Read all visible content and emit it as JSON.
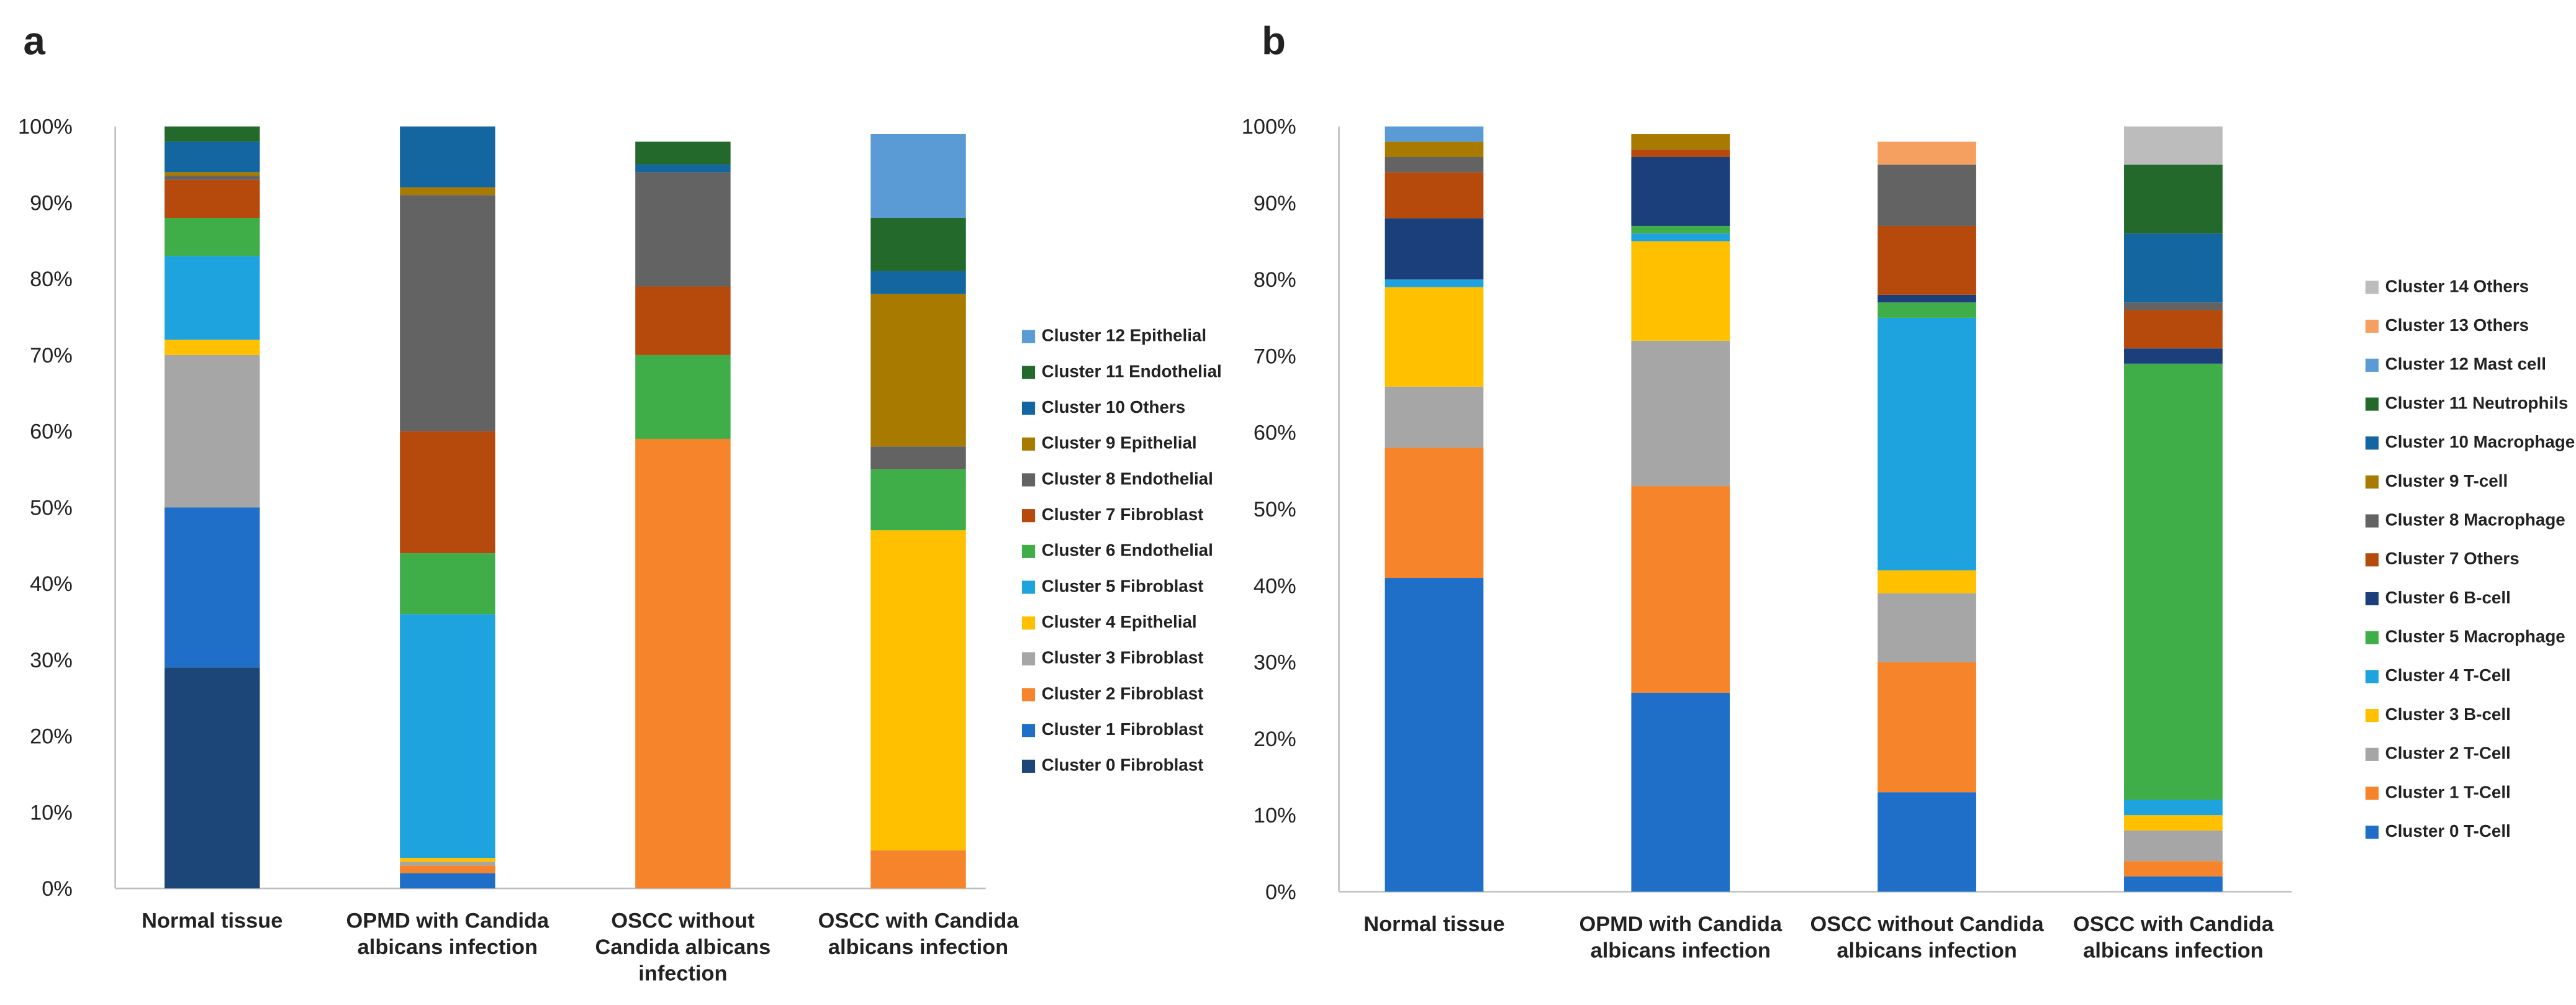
{
  "chart_data": [
    {
      "type": "stacked-bar",
      "panel": "a",
      "categories": [
        "Normal tissue",
        "OPMD with Candida albicans infection",
        "OSCC without Candida albicans infection",
        "OSCC with Candida albicans infection"
      ],
      "ylim": [
        0,
        100
      ],
      "yticks": [
        {
          "value": 0,
          "label": "0%"
        },
        {
          "value": 10,
          "label": "10%"
        },
        {
          "value": 20,
          "label": "20%"
        },
        {
          "value": 30,
          "label": "30%"
        },
        {
          "value": 40,
          "label": "40%"
        },
        {
          "value": 50,
          "label": "50%"
        },
        {
          "value": 60,
          "label": "60%"
        },
        {
          "value": 70,
          "label": "70%"
        },
        {
          "value": 80,
          "label": "80%"
        },
        {
          "value": 90,
          "label": "90%"
        },
        {
          "value": 100,
          "label": "100%"
        }
      ],
      "series": [
        {
          "name": "Cluster 0 Fibroblast",
          "color": "#1c4677",
          "values": [
            29,
            0,
            0,
            0
          ]
        },
        {
          "name": "Cluster 1 Fibroblast",
          "color": "#1f6fc9",
          "values": [
            21,
            2,
            0,
            0
          ]
        },
        {
          "name": "Cluster 2 Fibroblast",
          "color": "#f5842a",
          "values": [
            0,
            1,
            59,
            5
          ]
        },
        {
          "name": "Cluster 3 Fibroblast",
          "color": "#a6a6a6",
          "values": [
            20,
            0.5,
            0,
            0
          ]
        },
        {
          "name": "Cluster 4 Epithelial",
          "color": "#ffc000",
          "values": [
            2,
            0.5,
            0,
            42
          ]
        },
        {
          "name": "Cluster 5 Fibroblast",
          "color": "#1fa3df",
          "values": [
            11,
            32,
            0,
            0
          ]
        },
        {
          "name": "Cluster 6 Endothelial",
          "color": "#3fae49",
          "values": [
            5,
            8,
            11,
            8
          ]
        },
        {
          "name": "Cluster 7 Fibroblast",
          "color": "#b54a0c",
          "values": [
            5,
            16,
            9,
            0
          ]
        },
        {
          "name": "Cluster 8 Endothelial",
          "color": "#636363",
          "values": [
            0.5,
            31,
            15,
            3
          ]
        },
        {
          "name": "Cluster 9 Epithelial",
          "color": "#a87b00",
          "values": [
            0.5,
            1,
            0,
            20
          ]
        },
        {
          "name": "Cluster 10 Others",
          "color": "#1366a0",
          "values": [
            4,
            8,
            1,
            3
          ]
        },
        {
          "name": "Cluster 11 Endothelial",
          "color": "#23692c",
          "values": [
            2,
            0,
            3,
            7
          ]
        },
        {
          "name": "Cluster 12 Epithelial",
          "color": "#5b9bd5",
          "values": [
            0,
            0,
            0,
            11
          ]
        }
      ]
    },
    {
      "type": "stacked-bar",
      "panel": "b",
      "categories": [
        "Normal tissue",
        "OPMD with Candida albicans infection",
        "OSCC without Candida albicans infection",
        "OSCC with Candida albicans infection"
      ],
      "ylim": [
        0,
        100
      ],
      "yticks": [
        {
          "value": 0,
          "label": "0%"
        },
        {
          "value": 10,
          "label": "10%"
        },
        {
          "value": 20,
          "label": "20%"
        },
        {
          "value": 30,
          "label": "30%"
        },
        {
          "value": 40,
          "label": "40%"
        },
        {
          "value": 50,
          "label": "50%"
        },
        {
          "value": 60,
          "label": "60%"
        },
        {
          "value": 70,
          "label": "70%"
        },
        {
          "value": 80,
          "label": "80%"
        },
        {
          "value": 90,
          "label": "90%"
        },
        {
          "value": 100,
          "label": "100%"
        }
      ],
      "series": [
        {
          "name": "Cluster 0 T-Cell",
          "color": "#1f6fc9",
          "values": [
            41,
            26,
            13,
            2
          ]
        },
        {
          "name": "Cluster 1 T-Cell",
          "color": "#f5842a",
          "values": [
            17,
            27,
            17,
            2
          ]
        },
        {
          "name": "Cluster 2 T-Cell",
          "color": "#a6a6a6",
          "values": [
            8,
            19,
            9,
            4
          ]
        },
        {
          "name": "Cluster 3 B-cell",
          "color": "#ffc000",
          "values": [
            13,
            13,
            3,
            2
          ]
        },
        {
          "name": "Cluster 4 T-Cell",
          "color": "#1fa3df",
          "values": [
            1,
            1,
            33,
            2
          ]
        },
        {
          "name": "Cluster 5 Macrophage",
          "color": "#3fae49",
          "values": [
            0,
            1,
            2,
            57
          ]
        },
        {
          "name": "Cluster 6 B-cell",
          "color": "#1a3f7a",
          "values": [
            8,
            9,
            1,
            2
          ]
        },
        {
          "name": "Cluster 7 Others",
          "color": "#b54a0c",
          "values": [
            6,
            1,
            9,
            5
          ]
        },
        {
          "name": "Cluster 8 Macrophage",
          "color": "#636363",
          "values": [
            2,
            0,
            8,
            1
          ]
        },
        {
          "name": "Cluster 9 T-cell",
          "color": "#a87b00",
          "values": [
            2,
            2,
            0,
            0
          ]
        },
        {
          "name": "Cluster 10 Macrophage",
          "color": "#1366a0",
          "values": [
            0,
            0,
            0,
            9
          ]
        },
        {
          "name": "Cluster 11 Neutrophils",
          "color": "#23692c",
          "values": [
            0,
            0,
            0,
            9
          ]
        },
        {
          "name": "Cluster 12 Mast cell",
          "color": "#5b9bd5",
          "values": [
            2,
            0,
            0,
            0
          ]
        },
        {
          "name": "Cluster 13 Others",
          "color": "#f5a060",
          "values": [
            0,
            0,
            3,
            0
          ]
        },
        {
          "name": "Cluster 14 Others",
          "color": "#bcbcbc",
          "values": [
            0,
            0,
            0,
            5
          ]
        }
      ]
    }
  ]
}
